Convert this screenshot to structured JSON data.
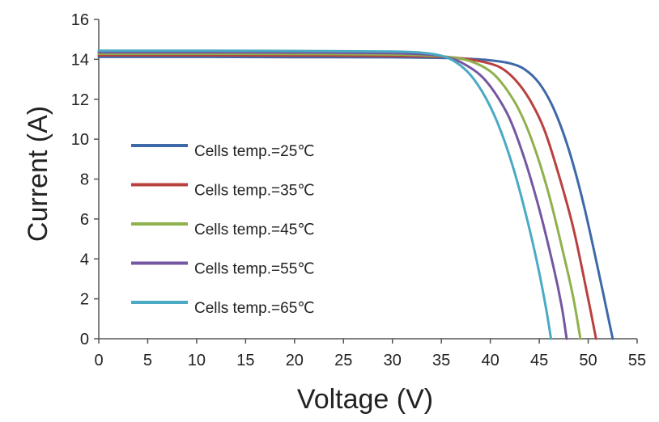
{
  "chart_data": {
    "type": "line",
    "title": "",
    "xlabel": "Voltage (V)",
    "ylabel": "Current (A)",
    "xlim": [
      0,
      55
    ],
    "ylim": [
      0,
      16
    ],
    "xticks": [
      0,
      5,
      10,
      15,
      20,
      25,
      30,
      35,
      40,
      45,
      50,
      55
    ],
    "yticks": [
      0,
      2,
      4,
      6,
      8,
      10,
      12,
      14,
      16
    ],
    "grid": false,
    "legend_position": "left",
    "series": [
      {
        "name": "Cells temp.=25℃",
        "color": "#3f68a8",
        "x": [
          0,
          10,
          20,
          30,
          35,
          38,
          40,
          42,
          43.5,
          45,
          46.5,
          48,
          49.5,
          51,
          52.5
        ],
        "y": [
          14.12,
          14.12,
          14.11,
          14.1,
          14.07,
          14.02,
          13.95,
          13.8,
          13.5,
          12.8,
          11.5,
          9.5,
          6.8,
          3.5,
          0
        ]
      },
      {
        "name": "Cells temp.=35℃",
        "color": "#b8413f",
        "x": [
          0,
          10,
          20,
          30,
          35,
          37,
          39,
          41,
          42.5,
          44,
          45.5,
          47,
          48.5,
          50,
          50.8
        ],
        "y": [
          14.2,
          14.2,
          14.19,
          14.17,
          14.12,
          14.05,
          13.9,
          13.6,
          13.0,
          12.0,
          10.5,
          8.2,
          5.5,
          2.0,
          0
        ]
      },
      {
        "name": "Cells temp.=45℃",
        "color": "#8fb14c",
        "x": [
          0,
          10,
          20,
          30,
          34,
          36,
          38,
          40,
          41.5,
          43,
          44.5,
          46,
          47.5,
          48.5,
          49.2
        ],
        "y": [
          14.28,
          14.28,
          14.27,
          14.24,
          14.18,
          14.1,
          13.9,
          13.4,
          12.6,
          11.4,
          9.6,
          7.2,
          4.2,
          2.0,
          0
        ]
      },
      {
        "name": "Cells temp.=55℃",
        "color": "#7556a0",
        "x": [
          0,
          10,
          20,
          30,
          34,
          35.5,
          37,
          39,
          40.5,
          42,
          43.5,
          45,
          46.5,
          47.3,
          47.8
        ],
        "y": [
          14.35,
          14.35,
          14.34,
          14.31,
          14.23,
          14.1,
          13.85,
          13.2,
          12.3,
          11.0,
          9.0,
          6.5,
          3.5,
          1.6,
          0
        ]
      },
      {
        "name": "Cells temp.=65℃",
        "color": "#4aaac4",
        "x": [
          0,
          10,
          20,
          30,
          33,
          35,
          36.5,
          38,
          39.5,
          41,
          42.5,
          44,
          45,
          45.7,
          46.2
        ],
        "y": [
          14.43,
          14.43,
          14.42,
          14.39,
          14.33,
          14.18,
          13.85,
          13.2,
          12.1,
          10.5,
          8.3,
          5.5,
          3.3,
          1.5,
          0
        ]
      }
    ]
  }
}
